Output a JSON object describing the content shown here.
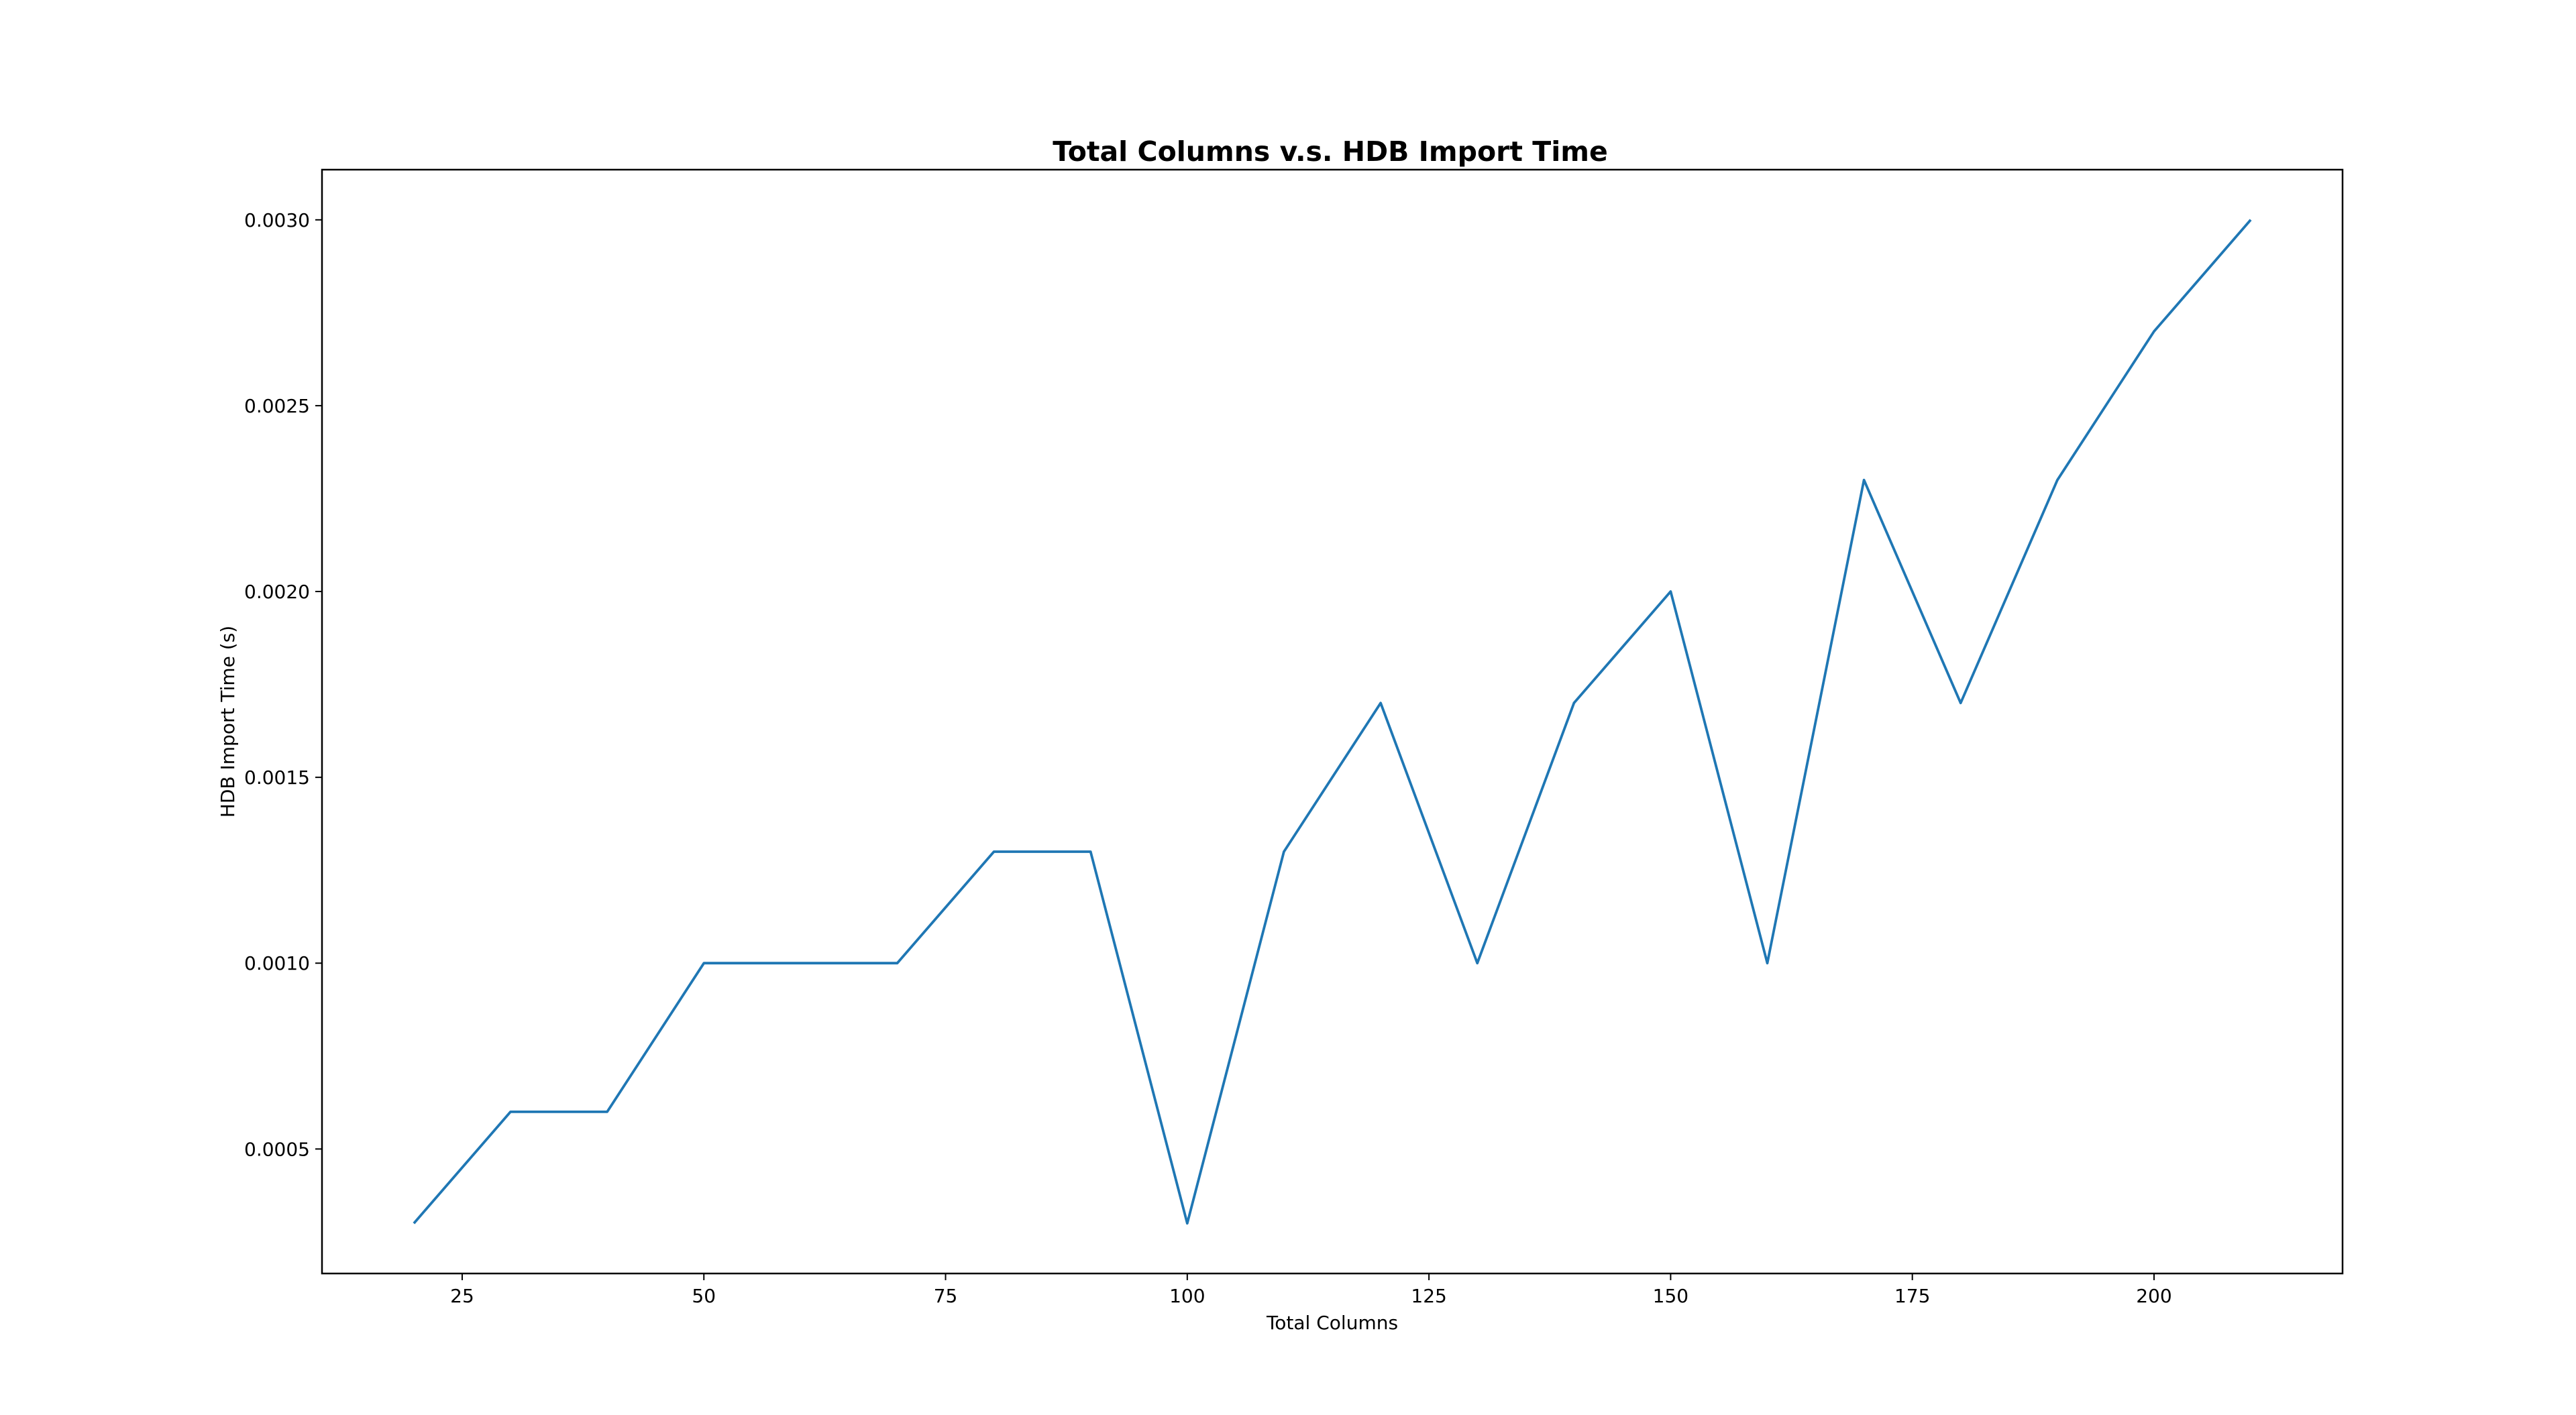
{
  "chart_data": {
    "type": "line",
    "title": "Total Columns v.s. HDB Import Time",
    "xlabel": "Total Columns",
    "ylabel": "HDB Import Time (s)",
    "xlim": [
      10.5,
      219.5
    ],
    "ylim": [
      0.000165,
      0.003135
    ],
    "xticks": [
      25,
      50,
      75,
      100,
      125,
      150,
      175,
      200
    ],
    "yticks": [
      0.0005,
      0.001,
      0.0015,
      0.002,
      0.0025,
      0.003
    ],
    "xtick_labels": [
      "25",
      "50",
      "75",
      "100",
      "125",
      "150",
      "175",
      "200"
    ],
    "ytick_labels": [
      "0.0005",
      "0.0010",
      "0.0015",
      "0.0020",
      "0.0025",
      "0.0030"
    ],
    "grid": false,
    "series": [
      {
        "color": "#1f77b4",
        "x": [
          20,
          30,
          40,
          50,
          60,
          70,
          80,
          90,
          100,
          110,
          120,
          130,
          140,
          150,
          160,
          170,
          180,
          190,
          200,
          210
        ],
        "y": [
          0.0003,
          0.0006,
          0.0006,
          0.001,
          0.001,
          0.001,
          0.0013,
          0.0013,
          0.0003,
          0.0013,
          0.0017,
          0.001,
          0.0017,
          0.002,
          0.001,
          0.0023,
          0.0017,
          0.0023,
          0.0027,
          0.003
        ]
      }
    ]
  }
}
